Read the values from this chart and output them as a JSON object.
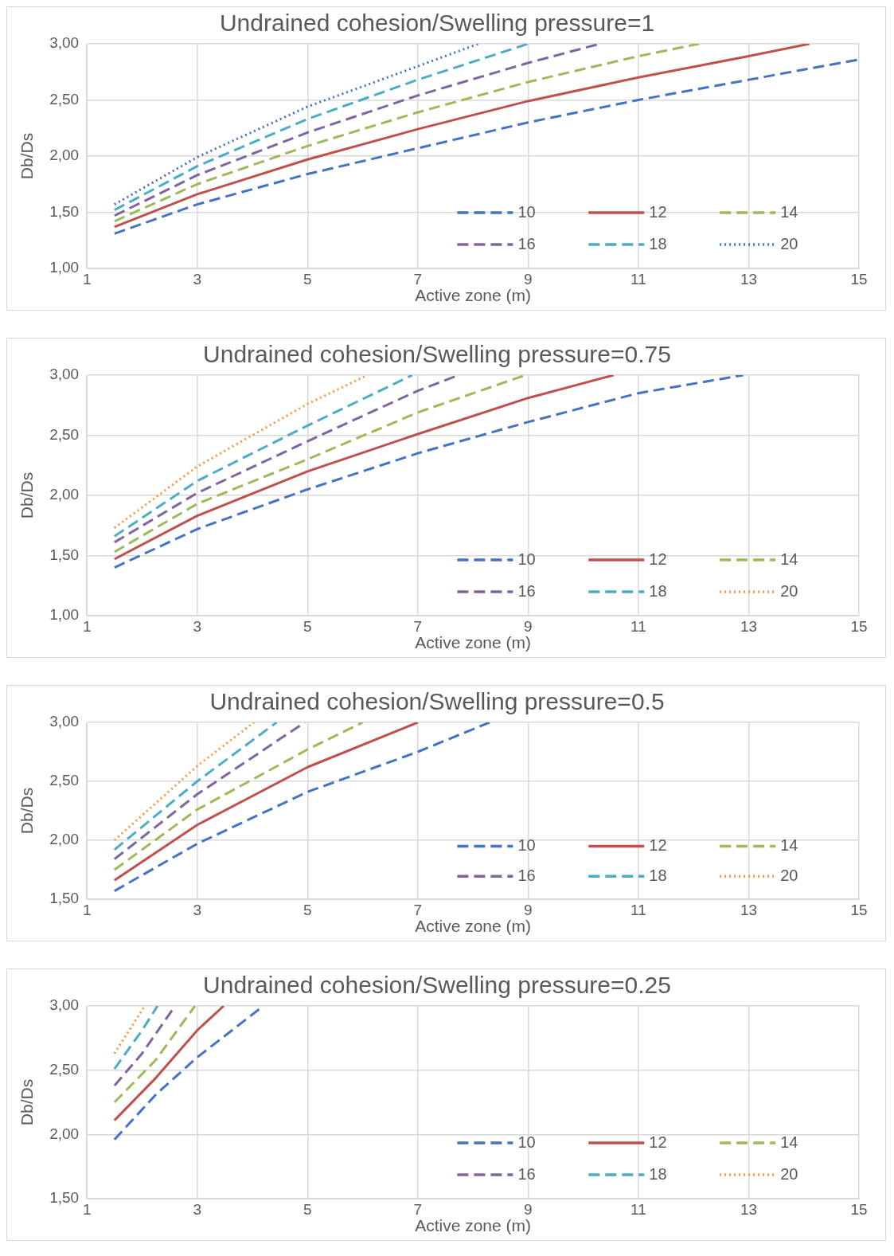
{
  "chart_data": [
    {
      "type": "line",
      "title": "Undrained cohesion/Swelling pressure=1",
      "xlabel": "Active zone (m)",
      "ylabel": "Db/Ds",
      "xlim": [
        1,
        15
      ],
      "xticks": [
        1,
        3,
        5,
        7,
        9,
        11,
        13,
        15
      ],
      "ylim": [
        1,
        3
      ],
      "yticks": [
        {
          "value": 1,
          "label": "1,00"
        },
        {
          "value": 1.5,
          "label": "1,50"
        },
        {
          "value": 2,
          "label": "2,00"
        },
        {
          "value": 2.5,
          "label": "2,50"
        },
        {
          "value": 3,
          "label": "3,00"
        }
      ],
      "grid": true,
      "legend": "bottom right",
      "marker": "none",
      "series": [
        {
          "name": "10",
          "color": "#4472c4",
          "line_style": "dashed",
          "x": [
            1.5,
            3,
            5,
            7,
            9,
            11,
            13,
            15
          ],
          "values": [
            1.31,
            1.57,
            1.84,
            2.07,
            2.3,
            2.5,
            2.68,
            2.86
          ]
        },
        {
          "name": "12",
          "color": "#c0504d",
          "line_style": "solid",
          "x": [
            1.5,
            3,
            5,
            7,
            9,
            11,
            13,
            14.1
          ],
          "values": [
            1.37,
            1.66,
            1.97,
            2.24,
            2.49,
            2.7,
            2.89,
            3
          ]
        },
        {
          "name": "14",
          "color": "#9bbb59",
          "line_style": "dashed",
          "x": [
            1.5,
            3,
            5,
            7,
            9,
            11,
            12.1
          ],
          "values": [
            1.42,
            1.75,
            2.09,
            2.39,
            2.66,
            2.89,
            3
          ]
        },
        {
          "name": "16",
          "color": "#8064a2",
          "line_style": "dashed",
          "x": [
            1.5,
            3,
            5,
            7,
            9,
            10.3
          ],
          "values": [
            1.47,
            1.83,
            2.21,
            2.54,
            2.83,
            3
          ]
        },
        {
          "name": "18",
          "color": "#4bacc6",
          "line_style": "dashed",
          "x": [
            1.5,
            3,
            5,
            7,
            9
          ],
          "values": [
            1.52,
            1.91,
            2.33,
            2.68,
            3
          ]
        },
        {
          "name": "20",
          "color": "#4472c4",
          "line_style": "dotted",
          "x": [
            1.5,
            3,
            5,
            7,
            8.1
          ],
          "values": [
            1.57,
            1.99,
            2.44,
            2.8,
            3
          ]
        }
      ]
    },
    {
      "type": "line",
      "title": "Undrained cohesion/Swelling pressure=0.75",
      "xlabel": "Active zone (m)",
      "ylabel": "Db/Ds",
      "xlim": [
        1,
        15
      ],
      "xticks": [
        1,
        3,
        5,
        7,
        9,
        11,
        13,
        15
      ],
      "ylim": [
        1,
        3
      ],
      "yticks": [
        {
          "value": 1,
          "label": "1,00"
        },
        {
          "value": 1.5,
          "label": "1,50"
        },
        {
          "value": 2,
          "label": "2,00"
        },
        {
          "value": 2.5,
          "label": "2,50"
        },
        {
          "value": 3,
          "label": "3,00"
        }
      ],
      "grid": true,
      "legend": "bottom right",
      "marker": "none",
      "series": [
        {
          "name": "10",
          "color": "#4472c4",
          "line_style": "dashed",
          "x": [
            1.5,
            3,
            5,
            7,
            9,
            11,
            12.9
          ],
          "values": [
            1.4,
            1.72,
            2.05,
            2.35,
            2.61,
            2.85,
            3
          ]
        },
        {
          "name": "12",
          "color": "#c0504d",
          "line_style": "solid",
          "x": [
            1.5,
            3,
            5,
            7,
            9,
            10.55
          ],
          "values": [
            1.47,
            1.83,
            2.2,
            2.51,
            2.81,
            3
          ]
        },
        {
          "name": "14",
          "color": "#9bbb59",
          "line_style": "dashed",
          "x": [
            1.5,
            3,
            5,
            7,
            8.95
          ],
          "values": [
            1.53,
            1.93,
            2.3,
            2.69,
            3
          ]
        },
        {
          "name": "16",
          "color": "#8064a2",
          "line_style": "dashed",
          "x": [
            1.5,
            3,
            5,
            7,
            7.74
          ],
          "values": [
            1.61,
            2.02,
            2.45,
            2.87,
            3
          ]
        },
        {
          "name": "18",
          "color": "#4bacc6",
          "line_style": "dashed",
          "x": [
            1.5,
            3,
            5,
            6.9
          ],
          "values": [
            1.66,
            2.12,
            2.58,
            3
          ]
        },
        {
          "name": "20",
          "color": "#f79646",
          "line_style": "dotted",
          "x": [
            1.5,
            3,
            5,
            6.09
          ],
          "values": [
            1.73,
            2.24,
            2.76,
            3
          ]
        }
      ]
    },
    {
      "type": "line",
      "title": "Undrained cohesion/Swelling pressure=0.5",
      "xlabel": "Active zone (m)",
      "ylabel": "Db/Ds",
      "xlim": [
        1,
        15
      ],
      "xticks": [
        1,
        3,
        5,
        7,
        9,
        11,
        13,
        15
      ],
      "ylim": [
        1.5,
        3
      ],
      "yticks": [
        {
          "value": 1.5,
          "label": "1,50"
        },
        {
          "value": 2,
          "label": "2,00"
        },
        {
          "value": 2.5,
          "label": "2,50"
        },
        {
          "value": 3,
          "label": "3,00"
        }
      ],
      "grid": true,
      "legend": "bottom right",
      "marker": "none",
      "series": [
        {
          "name": "10",
          "color": "#4472c4",
          "line_style": "dashed",
          "x": [
            1.5,
            3,
            5,
            7,
            8.3
          ],
          "values": [
            1.57,
            1.97,
            2.41,
            2.75,
            3
          ]
        },
        {
          "name": "12",
          "color": "#c0504d",
          "line_style": "solid",
          "x": [
            1.5,
            3,
            5,
            7
          ],
          "values": [
            1.66,
            2.13,
            2.62,
            3
          ]
        },
        {
          "name": "14",
          "color": "#9bbb59",
          "line_style": "dashed",
          "x": [
            1.5,
            3,
            5,
            6
          ],
          "values": [
            1.75,
            2.26,
            2.77,
            3
          ]
        },
        {
          "name": "16",
          "color": "#8064a2",
          "line_style": "dashed",
          "x": [
            1.5,
            3,
            4.95
          ],
          "values": [
            1.84,
            2.39,
            3
          ]
        },
        {
          "name": "18",
          "color": "#4bacc6",
          "line_style": "dashed",
          "x": [
            1.5,
            3,
            4.44
          ],
          "values": [
            1.92,
            2.5,
            3
          ]
        },
        {
          "name": "20",
          "color": "#f79646",
          "line_style": "dotted",
          "x": [
            1.5,
            3,
            4.03
          ],
          "values": [
            2,
            2.63,
            3
          ]
        }
      ]
    },
    {
      "type": "line",
      "title": "Undrained cohesion/Swelling pressure=0.25",
      "xlabel": "Active zone (m)",
      "ylabel": "Db/Ds",
      "xlim": [
        1,
        15
      ],
      "xticks": [
        1,
        3,
        5,
        7,
        9,
        11,
        13,
        15
      ],
      "ylim": [
        1.5,
        3
      ],
      "yticks": [
        {
          "value": 1.5,
          "label": "1,50"
        },
        {
          "value": 2,
          "label": "2,00"
        },
        {
          "value": 2.5,
          "label": "2,50"
        },
        {
          "value": 3,
          "label": "3,00"
        }
      ],
      "grid": true,
      "legend": "bottom right",
      "marker": "none",
      "series": [
        {
          "name": "10",
          "color": "#4472c4",
          "line_style": "dashed",
          "x": [
            1.5,
            2.25,
            3,
            4.2
          ],
          "values": [
            1.96,
            2.31,
            2.6,
            3
          ]
        },
        {
          "name": "12",
          "color": "#c0504d",
          "line_style": "solid",
          "x": [
            1.5,
            2.25,
            3,
            3.48
          ],
          "values": [
            2.11,
            2.44,
            2.81,
            3
          ]
        },
        {
          "name": "14",
          "color": "#9bbb59",
          "line_style": "dashed",
          "x": [
            1.5,
            2.25,
            2.96
          ],
          "values": [
            2.25,
            2.58,
            3
          ]
        },
        {
          "name": "16",
          "color": "#8064a2",
          "line_style": "dashed",
          "x": [
            1.5,
            2,
            2.6
          ],
          "values": [
            2.38,
            2.63,
            3
          ]
        },
        {
          "name": "18",
          "color": "#4bacc6",
          "line_style": "dashed",
          "x": [
            1.5,
            2,
            2.28
          ],
          "values": [
            2.51,
            2.81,
            3
          ]
        },
        {
          "name": "20",
          "color": "#f79646",
          "line_style": "dotted",
          "x": [
            1.5,
            2.05
          ],
          "values": [
            2.63,
            3
          ]
        }
      ]
    }
  ]
}
